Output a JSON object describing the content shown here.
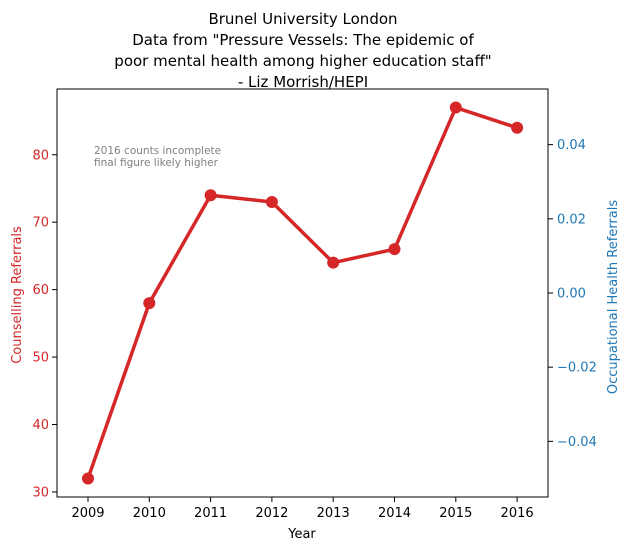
{
  "chart_data": {
    "type": "line",
    "title_lines": [
      "Brunel University London",
      "Data from \"Pressure Vessels: The epidemic of",
      "poor mental health among higher education staff\"",
      "- Liz Morrish/HEPI"
    ],
    "xlabel": "Year",
    "ylabel_left": "Counselling Referrals",
    "ylabel_right": "Occupational Health Referrals",
    "x": [
      "2009",
      "2010",
      "2011",
      "2012",
      "2013",
      "2014",
      "2015",
      "2016"
    ],
    "series": [
      {
        "values": [
          32,
          58,
          74,
          73,
          64,
          66,
          87,
          84
        ],
        "color": "#d62728",
        "axis": "left"
      }
    ],
    "ylim_left": [
      29.25,
      89.75
    ],
    "yticks_left": [
      "30",
      "40",
      "50",
      "60",
      "70",
      "80"
    ],
    "ylim_right": [
      -0.055,
      0.055
    ],
    "yticks_right": [
      "−0.04",
      "−0.02",
      "0.00",
      "0.02",
      "0.04"
    ],
    "annotation_lines": [
      "2016 counts incomplete",
      "final figure likely higher"
    ],
    "left_axis_color": "#d62728",
    "right_axis_color": "#1f77b4",
    "grid": false
  }
}
